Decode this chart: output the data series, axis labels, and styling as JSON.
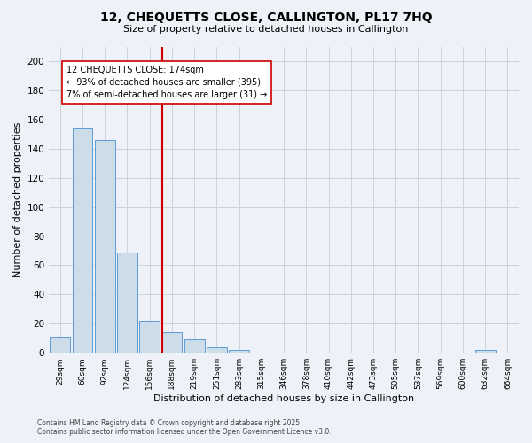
{
  "title": "12, CHEQUETTS CLOSE, CALLINGTON, PL17 7HQ",
  "subtitle": "Size of property relative to detached houses in Callington",
  "xlabel": "Distribution of detached houses by size in Callington",
  "ylabel": "Number of detached properties",
  "footer_line1": "Contains HM Land Registry data © Crown copyright and database right 2025.",
  "footer_line2": "Contains public sector information licensed under the Open Government Licence v3.0.",
  "bin_labels": [
    "29sqm",
    "60sqm",
    "92sqm",
    "124sqm",
    "156sqm",
    "188sqm",
    "219sqm",
    "251sqm",
    "283sqm",
    "315sqm",
    "346sqm",
    "378sqm",
    "410sqm",
    "442sqm",
    "473sqm",
    "505sqm",
    "537sqm",
    "569sqm",
    "600sqm",
    "632sqm",
    "664sqm"
  ],
  "bar_values": [
    11,
    154,
    146,
    69,
    22,
    14,
    9,
    4,
    2,
    0,
    0,
    0,
    0,
    0,
    0,
    0,
    0,
    0,
    0,
    2,
    0
  ],
  "bar_color": "#ccdce8",
  "bar_edge_color": "#5b9bd5",
  "vline_color": "#cc0000",
  "vline_x_index": 4.56,
  "annotation_text": "12 CHEQUETTS CLOSE: 174sqm\n← 93% of detached houses are smaller (395)\n7% of semi-detached houses are larger (31) →",
  "annotation_box_color": "#ffffff",
  "annotation_box_edge": "#cc0000",
  "ylim": [
    0,
    210
  ],
  "yticks": [
    0,
    20,
    40,
    60,
    80,
    100,
    120,
    140,
    160,
    180,
    200
  ],
  "grid_color": "#c8d4e0",
  "background_color": "#eef2f8"
}
